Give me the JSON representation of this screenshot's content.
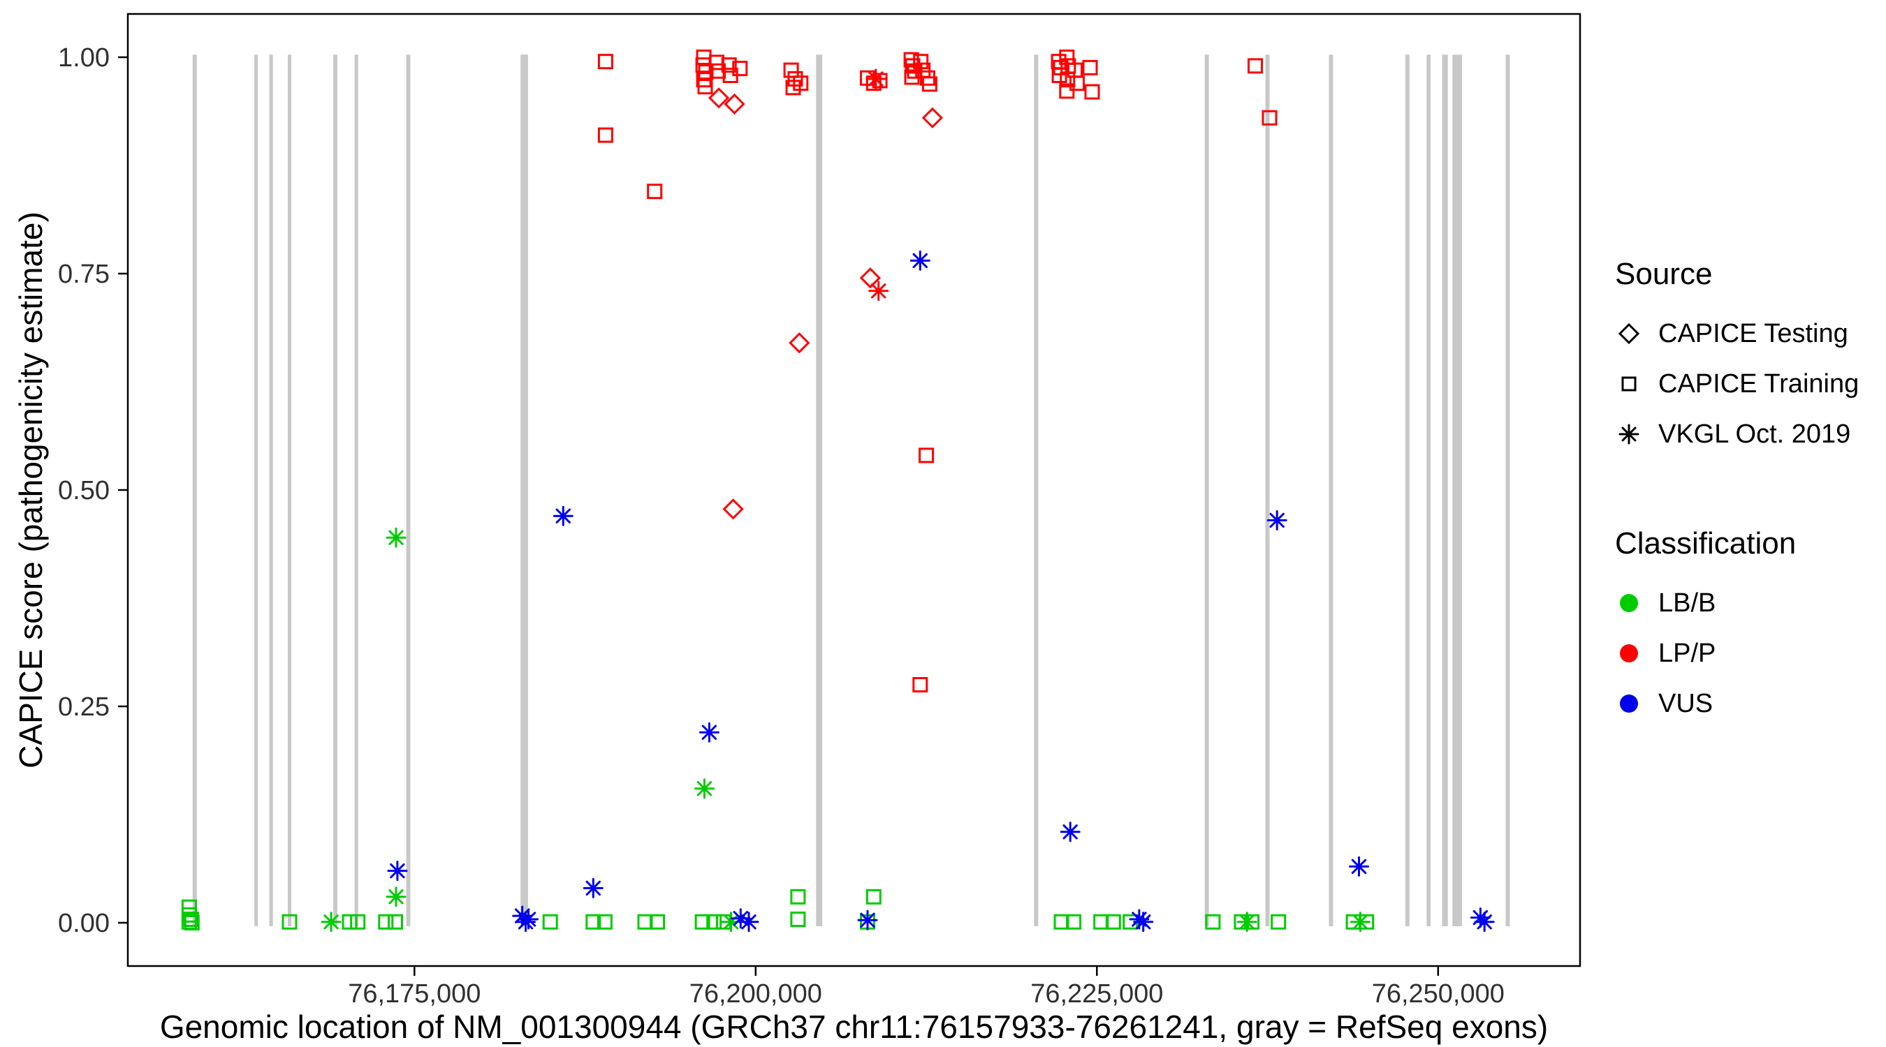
{
  "figure": {
    "x_axis": {
      "title": "Genomic location of NM_001300944 (GRCh37 chr11:76157933-76261241, gray = RefSeq exons)",
      "ticks": [
        76175000,
        76200000,
        76225000,
        76250000
      ],
      "tick_labels": [
        "76,175,000",
        "76,200,000",
        "76,225,000",
        "76,250,000"
      ]
    },
    "y_axis": {
      "title": "CAPICE score (pathogenicity estimate)",
      "ticks": [
        0,
        0.25,
        0.5,
        0.75,
        1
      ],
      "tick_labels": [
        "0.00",
        "0.25",
        "0.50",
        "0.75",
        "1.00"
      ]
    }
  },
  "legend": {
    "source": {
      "title": "Source",
      "items": [
        {
          "shape": "diamond",
          "label": "CAPICE Testing"
        },
        {
          "shape": "square",
          "label": "CAPICE Training"
        },
        {
          "shape": "asterisk",
          "label": "VKGL Oct. 2019"
        }
      ]
    },
    "classification": {
      "title": "Classification",
      "items": [
        {
          "label": "LB/B",
          "color": "#00CC00"
        },
        {
          "label": "LP/P",
          "color": "#FF0000"
        },
        {
          "label": "VUS",
          "color": "#0000EE"
        }
      ]
    }
  },
  "chart_data": {
    "type": "scatter",
    "xlim": [
      76154000,
      76260400
    ],
    "ylim": [
      -0.05,
      1.05
    ],
    "exon_color": "#C8C8C8",
    "colors": {
      "B": "#00CC00",
      "P": "#FF0000",
      "V": "#0000EE"
    },
    "class_names": {
      "B": "LB/B",
      "P": "LP/P",
      "V": "VUS"
    },
    "shape_source": {
      "s": "CAPICE Training",
      "d": "CAPICE Testing",
      "a": "VKGL Oct. 2019"
    },
    "exon_format": [
      "center_bp",
      "width_bp"
    ],
    "exons": [
      [
        76158900,
        300
      ],
      [
        76163400,
        260
      ],
      [
        76164500,
        260
      ],
      [
        76165850,
        260
      ],
      [
        76169200,
        300
      ],
      [
        76170750,
        260
      ],
      [
        76174550,
        300
      ],
      [
        76183050,
        550
      ],
      [
        76204650,
        450
      ],
      [
        76220550,
        300
      ],
      [
        76233050,
        300
      ],
      [
        76237500,
        300
      ],
      [
        76242150,
        300
      ],
      [
        76247750,
        300
      ],
      [
        76249300,
        280
      ],
      [
        76250500,
        420
      ],
      [
        76251400,
        700
      ],
      [
        76255100,
        300
      ]
    ],
    "point_format": [
      "x_bp",
      "capice_score",
      "shape(s=square,d=diamond,a=asterisk)",
      "class(B=LB/B,P=LP/P,V=VUS)"
    ],
    "points": [
      [
        76158500,
        0.018,
        "s",
        "B"
      ],
      [
        76158500,
        0.009,
        "s",
        "B"
      ],
      [
        76158650,
        0.004,
        "s",
        "B"
      ],
      [
        76158500,
        0.001,
        "s",
        "B"
      ],
      [
        76158700,
        0,
        "s",
        "B"
      ],
      [
        76165850,
        0.001,
        "s",
        "B"
      ],
      [
        76170250,
        0.001,
        "s",
        "B"
      ],
      [
        76170850,
        0.001,
        "s",
        "B"
      ],
      [
        76172900,
        0.001,
        "s",
        "B"
      ],
      [
        76173600,
        0.001,
        "s",
        "B"
      ],
      [
        76184950,
        0.001,
        "s",
        "B"
      ],
      [
        76188100,
        0.001,
        "s",
        "B"
      ],
      [
        76188950,
        0.001,
        "s",
        "B"
      ],
      [
        76191900,
        0.001,
        "s",
        "B"
      ],
      [
        76192800,
        0.001,
        "s",
        "B"
      ],
      [
        76196100,
        0.001,
        "s",
        "B"
      ],
      [
        76196950,
        0.001,
        "s",
        "B"
      ],
      [
        76197650,
        0.001,
        "s",
        "B"
      ],
      [
        76203100,
        0.03,
        "s",
        "B"
      ],
      [
        76203100,
        0.004,
        "s",
        "B"
      ],
      [
        76208200,
        0.001,
        "s",
        "B"
      ],
      [
        76208650,
        0.03,
        "s",
        "B"
      ],
      [
        76222400,
        0.001,
        "s",
        "B"
      ],
      [
        76223300,
        0.001,
        "s",
        "B"
      ],
      [
        76225300,
        0.001,
        "s",
        "B"
      ],
      [
        76226200,
        0.001,
        "s",
        "B"
      ],
      [
        76227450,
        0.001,
        "s",
        "B"
      ],
      [
        76233500,
        0.001,
        "s",
        "B"
      ],
      [
        76235600,
        0.001,
        "s",
        "B"
      ],
      [
        76236350,
        0.001,
        "s",
        "B"
      ],
      [
        76238300,
        0.001,
        "s",
        "B"
      ],
      [
        76243800,
        0.001,
        "s",
        "B"
      ],
      [
        76244750,
        0.001,
        "s",
        "B"
      ],
      [
        76168900,
        0.001,
        "a",
        "B"
      ],
      [
        76173650,
        0.03,
        "a",
        "B"
      ],
      [
        76173650,
        0.445,
        "a",
        "B"
      ],
      [
        76196250,
        0.155,
        "a",
        "B"
      ],
      [
        76198200,
        0.001,
        "a",
        "B"
      ],
      [
        76236000,
        0.001,
        "a",
        "B"
      ],
      [
        76244300,
        0.001,
        "a",
        "B"
      ],
      [
        76189000,
        0.995,
        "s",
        "P"
      ],
      [
        76189000,
        0.91,
        "s",
        "P"
      ],
      [
        76192600,
        0.845,
        "s",
        "P"
      ],
      [
        76196200,
        1,
        "s",
        "P"
      ],
      [
        76196150,
        0.991,
        "s",
        "P"
      ],
      [
        76196350,
        0.983,
        "s",
        "P"
      ],
      [
        76196200,
        0.974,
        "s",
        "P"
      ],
      [
        76196300,
        0.966,
        "s",
        "P"
      ],
      [
        76197150,
        0.994,
        "s",
        "P"
      ],
      [
        76197250,
        0.984,
        "s",
        "P"
      ],
      [
        76198050,
        0.991,
        "s",
        "P"
      ],
      [
        76198150,
        0.979,
        "s",
        "P"
      ],
      [
        76198850,
        0.987,
        "s",
        "P"
      ],
      [
        76202600,
        0.985,
        "s",
        "P"
      ],
      [
        76202900,
        0.975,
        "s",
        "P"
      ],
      [
        76203300,
        0.97,
        "s",
        "P"
      ],
      [
        76202750,
        0.965,
        "s",
        "P"
      ],
      [
        76208200,
        0.976,
        "s",
        "P"
      ],
      [
        76208650,
        0.97,
        "s",
        "P"
      ],
      [
        76209100,
        0.973,
        "s",
        "P"
      ],
      [
        76211400,
        0.997,
        "s",
        "P"
      ],
      [
        76211500,
        0.99,
        "s",
        "P"
      ],
      [
        76211650,
        0.984,
        "s",
        "P"
      ],
      [
        76211450,
        0.977,
        "s",
        "P"
      ],
      [
        76212100,
        0.995,
        "s",
        "P"
      ],
      [
        76212250,
        0.985,
        "s",
        "P"
      ],
      [
        76212600,
        0.976,
        "s",
        "P"
      ],
      [
        76212750,
        0.969,
        "s",
        "P"
      ],
      [
        76212500,
        0.54,
        "s",
        "P"
      ],
      [
        76212050,
        0.275,
        "s",
        "P"
      ],
      [
        76222200,
        0.995,
        "s",
        "P"
      ],
      [
        76222350,
        0.988,
        "s",
        "P"
      ],
      [
        76222250,
        0.979,
        "s",
        "P"
      ],
      [
        76222800,
        1,
        "s",
        "P"
      ],
      [
        76222900,
        0.99,
        "s",
        "P"
      ],
      [
        76222850,
        0.974,
        "s",
        "P"
      ],
      [
        76222800,
        0.961,
        "s",
        "P"
      ],
      [
        76223400,
        0.985,
        "s",
        "P"
      ],
      [
        76223550,
        0.97,
        "s",
        "P"
      ],
      [
        76224500,
        0.988,
        "s",
        "P"
      ],
      [
        76224650,
        0.96,
        "s",
        "P"
      ],
      [
        76236600,
        0.99,
        "s",
        "P"
      ],
      [
        76237650,
        0.93,
        "s",
        "P"
      ],
      [
        76197300,
        0.953,
        "d",
        "P"
      ],
      [
        76198450,
        0.946,
        "d",
        "P"
      ],
      [
        76198350,
        0.478,
        "d",
        "P"
      ],
      [
        76203200,
        0.67,
        "d",
        "P"
      ],
      [
        76208400,
        0.745,
        "d",
        "P"
      ],
      [
        76212950,
        0.93,
        "d",
        "P"
      ],
      [
        76208800,
        0.975,
        "a",
        "P"
      ],
      [
        76209000,
        0.73,
        "a",
        "P"
      ],
      [
        76173750,
        0.06,
        "a",
        "V"
      ],
      [
        76182900,
        0.008,
        "a",
        "V"
      ],
      [
        76183150,
        0.001,
        "a",
        "V"
      ],
      [
        76183350,
        0.004,
        "a",
        "V"
      ],
      [
        76185900,
        0.47,
        "a",
        "V"
      ],
      [
        76188100,
        0.04,
        "a",
        "V"
      ],
      [
        76196600,
        0.22,
        "a",
        "V"
      ],
      [
        76198900,
        0.005,
        "a",
        "V"
      ],
      [
        76199500,
        0.001,
        "a",
        "V"
      ],
      [
        76208200,
        0.003,
        "a",
        "V"
      ],
      [
        76212050,
        0.765,
        "a",
        "V"
      ],
      [
        76223050,
        0.105,
        "a",
        "V"
      ],
      [
        76228100,
        0.004,
        "a",
        "V"
      ],
      [
        76228400,
        0.001,
        "a",
        "V"
      ],
      [
        76238200,
        0.465,
        "a",
        "V"
      ],
      [
        76244200,
        0.065,
        "a",
        "V"
      ],
      [
        76253100,
        0.006,
        "a",
        "V"
      ],
      [
        76253400,
        0.001,
        "a",
        "V"
      ]
    ]
  }
}
